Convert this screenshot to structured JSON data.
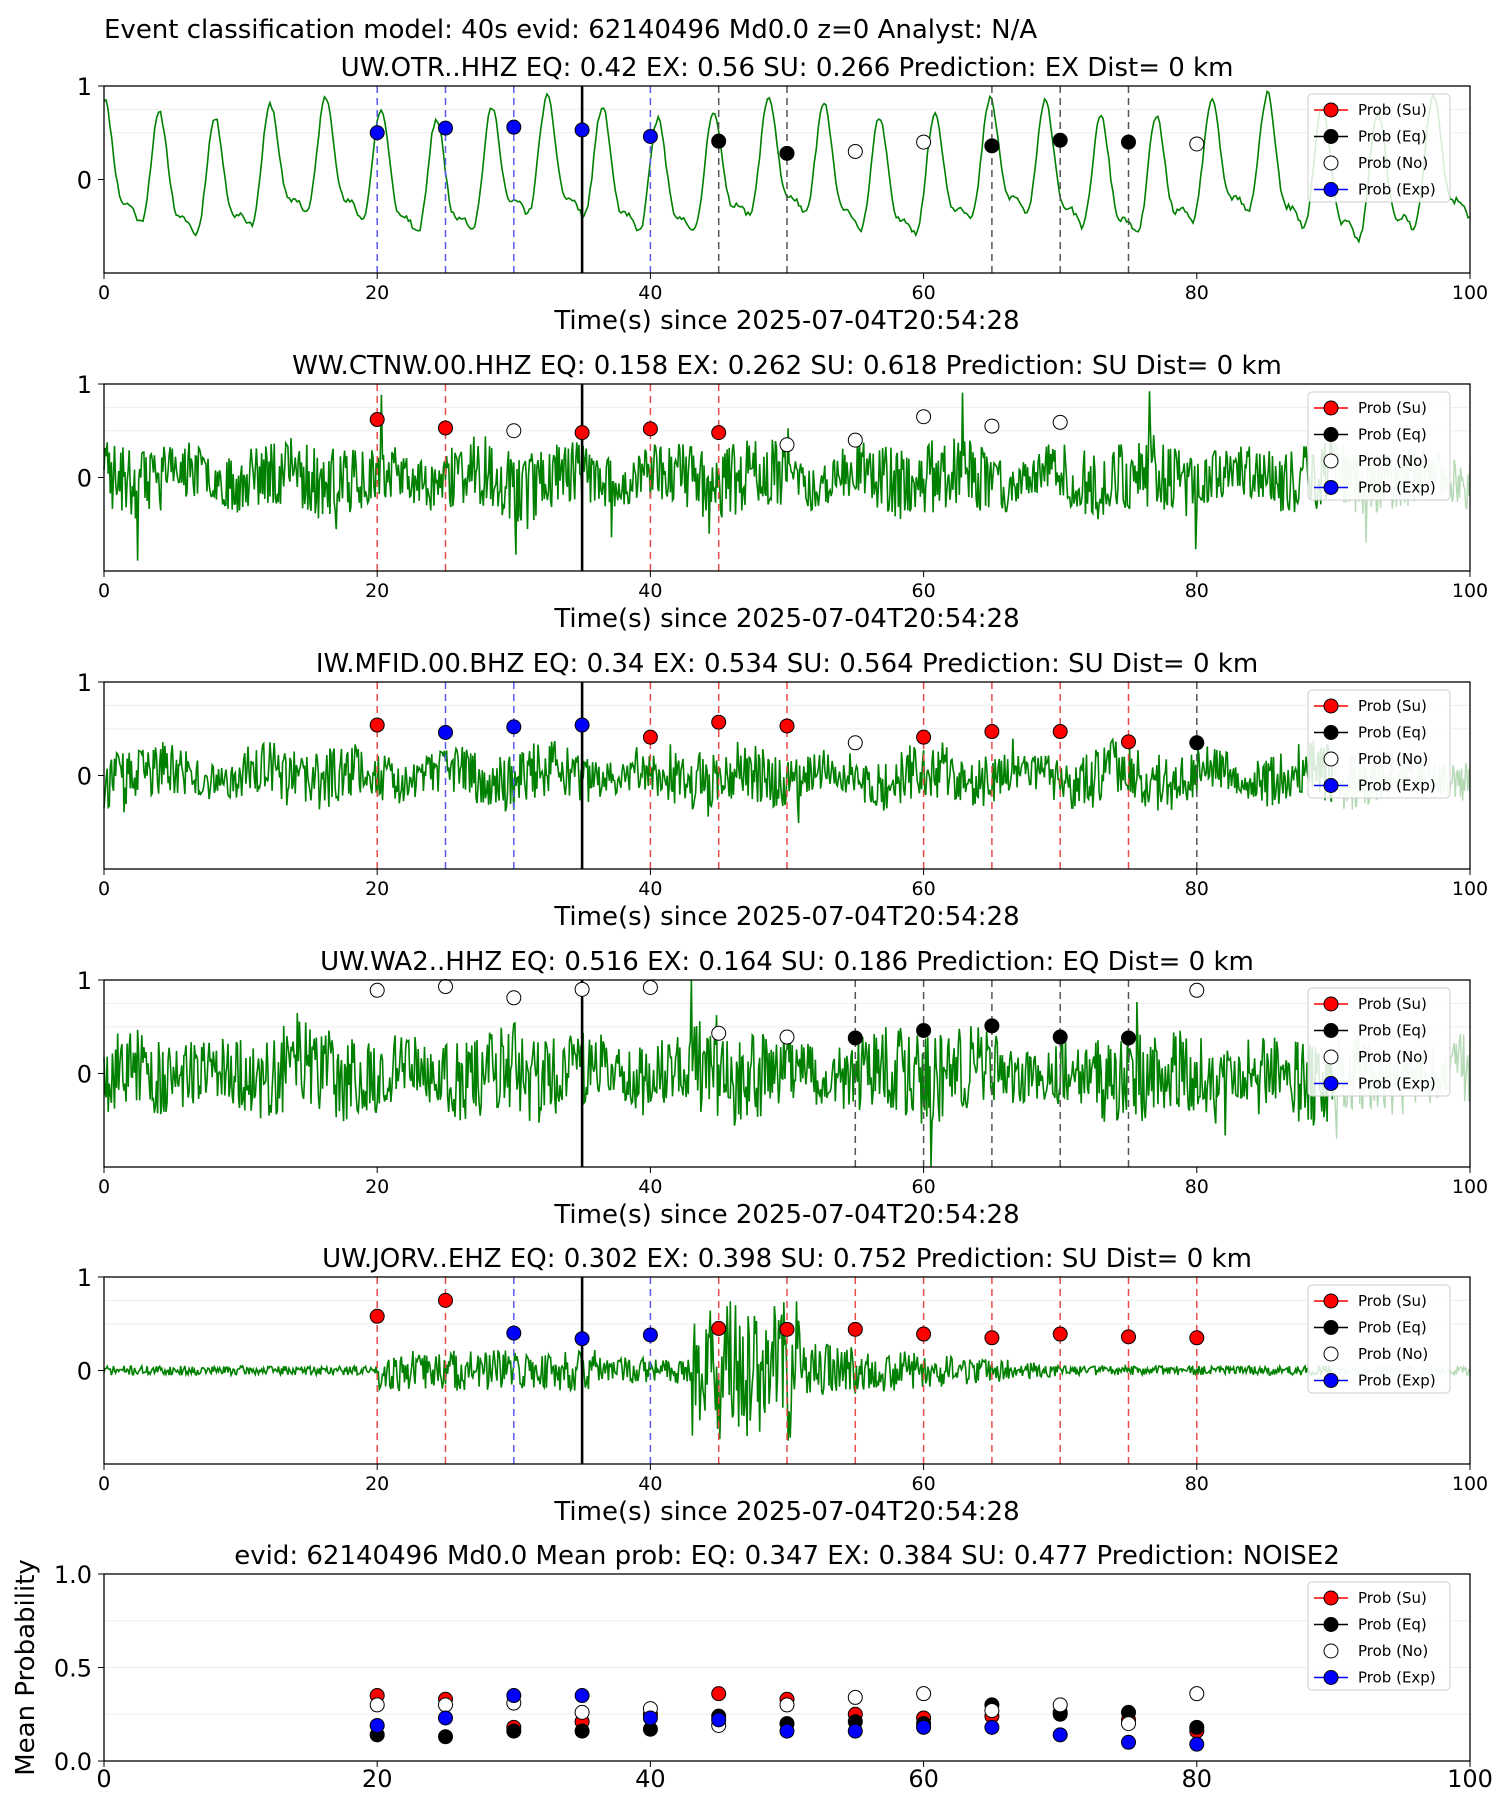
{
  "figure_title": "Event classification model: 40s evid: 62140496 Md0.0 z=0 Analyst: N/A",
  "legend": [
    "Prob (Su)",
    "Prob (Eq)",
    "Prob (No)",
    "Prob (Exp)"
  ],
  "colors": {
    "su": "#ff0000",
    "eq": "#000000",
    "no": "#ffffff",
    "exp": "#0000ff",
    "trace": "#008000",
    "trace_faded": "#b5d9b5"
  },
  "chart_data": [
    {
      "type": "scatter",
      "title": "UW.OTR..HHZ   EQ: 0.42   EX: 0.56   SU: 0.266   Prediction: EX    Dist= 0 km",
      "xlabel": "Time(s) since 2025-07-04T20:54:28",
      "xlim": [
        0,
        100
      ],
      "ylim": [
        -1,
        1
      ],
      "xticks": [
        "0",
        "20",
        "40",
        "60",
        "80",
        "100"
      ],
      "yticks": [
        "0",
        "1"
      ],
      "trace": {
        "style": "low-frequency",
        "seed": 11,
        "amp": 0.62
      },
      "arrival_time": 35,
      "points": [
        {
          "t": 20,
          "cls": "exp",
          "p": 0.5
        },
        {
          "t": 25,
          "cls": "exp",
          "p": 0.55
        },
        {
          "t": 30,
          "cls": "exp",
          "p": 0.56
        },
        {
          "t": 35,
          "cls": "exp",
          "p": 0.53
        },
        {
          "t": 40,
          "cls": "exp",
          "p": 0.46
        },
        {
          "t": 45,
          "cls": "eq",
          "p": 0.41
        },
        {
          "t": 50,
          "cls": "eq",
          "p": 0.28
        },
        {
          "t": 55,
          "cls": "no",
          "p": 0.3
        },
        {
          "t": 60,
          "cls": "no",
          "p": 0.4
        },
        {
          "t": 65,
          "cls": "eq",
          "p": 0.36
        },
        {
          "t": 70,
          "cls": "eq",
          "p": 0.42
        },
        {
          "t": 75,
          "cls": "eq",
          "p": 0.4
        },
        {
          "t": 80,
          "cls": "no",
          "p": 0.38
        }
      ]
    },
    {
      "type": "scatter",
      "title": "WW.CTNW.00.HHZ   EQ: 0.158   EX: 0.262   SU: 0.618   Prediction: SU    Dist= 0 km",
      "xlabel": "Time(s) since 2025-07-04T20:54:28",
      "xlim": [
        0,
        100
      ],
      "ylim": [
        -1,
        1
      ],
      "xticks": [
        "0",
        "20",
        "40",
        "60",
        "80",
        "100"
      ],
      "yticks": [
        "0",
        "1"
      ],
      "trace": {
        "style": "noise",
        "seed": 23,
        "amp": 0.32
      },
      "arrival_time": 35,
      "points": [
        {
          "t": 20,
          "cls": "su",
          "p": 0.62
        },
        {
          "t": 25,
          "cls": "su",
          "p": 0.53
        },
        {
          "t": 30,
          "cls": "no",
          "p": 0.5
        },
        {
          "t": 35,
          "cls": "su",
          "p": 0.48
        },
        {
          "t": 40,
          "cls": "su",
          "p": 0.52
        },
        {
          "t": 45,
          "cls": "su",
          "p": 0.48
        },
        {
          "t": 50,
          "cls": "no",
          "p": 0.35
        },
        {
          "t": 55,
          "cls": "no",
          "p": 0.4
        },
        {
          "t": 60,
          "cls": "no",
          "p": 0.65
        },
        {
          "t": 65,
          "cls": "no",
          "p": 0.55
        },
        {
          "t": 70,
          "cls": "no",
          "p": 0.59
        }
      ]
    },
    {
      "type": "scatter",
      "title": "IW.MFID.00.BHZ   EQ: 0.34   EX: 0.534   SU: 0.564   Prediction: SU    Dist= 0 km",
      "xlabel": "Time(s) since 2025-07-04T20:54:28",
      "xlim": [
        0,
        100
      ],
      "ylim": [
        -1,
        1
      ],
      "xticks": [
        "0",
        "20",
        "40",
        "60",
        "80",
        "100"
      ],
      "yticks": [
        "0",
        "1"
      ],
      "trace": {
        "style": "noise",
        "seed": 37,
        "amp": 0.26
      },
      "arrival_time": 35,
      "points": [
        {
          "t": 20,
          "cls": "su",
          "p": 0.54
        },
        {
          "t": 25,
          "cls": "exp",
          "p": 0.46
        },
        {
          "t": 30,
          "cls": "exp",
          "p": 0.52
        },
        {
          "t": 35,
          "cls": "exp",
          "p": 0.54
        },
        {
          "t": 40,
          "cls": "su",
          "p": 0.41
        },
        {
          "t": 45,
          "cls": "su",
          "p": 0.57
        },
        {
          "t": 50,
          "cls": "su",
          "p": 0.53
        },
        {
          "t": 55,
          "cls": "no",
          "p": 0.35
        },
        {
          "t": 60,
          "cls": "su",
          "p": 0.41
        },
        {
          "t": 65,
          "cls": "su",
          "p": 0.47
        },
        {
          "t": 70,
          "cls": "su",
          "p": 0.47
        },
        {
          "t": 75,
          "cls": "su",
          "p": 0.36
        },
        {
          "t": 80,
          "cls": "eq",
          "p": 0.35
        }
      ]
    },
    {
      "type": "scatter",
      "title": "UW.WA2..HHZ   EQ: 0.516   EX: 0.164   SU: 0.186   Prediction: EQ    Dist= 0 km",
      "xlabel": "Time(s) since 2025-07-04T20:54:28",
      "xlim": [
        0,
        100
      ],
      "ylim": [
        -1,
        1
      ],
      "xticks": [
        "0",
        "20",
        "40",
        "60",
        "80",
        "100"
      ],
      "yticks": [
        "0",
        "1"
      ],
      "trace": {
        "style": "noise",
        "seed": 53,
        "amp": 0.4
      },
      "arrival_time": 35,
      "points": [
        {
          "t": 20,
          "cls": "no",
          "p": 0.89
        },
        {
          "t": 25,
          "cls": "no",
          "p": 0.93
        },
        {
          "t": 30,
          "cls": "no",
          "p": 0.81
        },
        {
          "t": 35,
          "cls": "no",
          "p": 0.9
        },
        {
          "t": 40,
          "cls": "no",
          "p": 0.92
        },
        {
          "t": 45,
          "cls": "no",
          "p": 0.43
        },
        {
          "t": 50,
          "cls": "no",
          "p": 0.39
        },
        {
          "t": 55,
          "cls": "eq",
          "p": 0.38
        },
        {
          "t": 60,
          "cls": "eq",
          "p": 0.46
        },
        {
          "t": 65,
          "cls": "eq",
          "p": 0.51
        },
        {
          "t": 70,
          "cls": "eq",
          "p": 0.39
        },
        {
          "t": 75,
          "cls": "eq",
          "p": 0.38
        },
        {
          "t": 80,
          "cls": "no",
          "p": 0.89
        }
      ]
    },
    {
      "type": "scatter",
      "title": "UW.JORV..EHZ   EQ: 0.302   EX: 0.398   SU: 0.752   Prediction: SU    Dist= 0 km",
      "xlabel": "Time(s) since 2025-07-04T20:54:28",
      "xlim": [
        0,
        100
      ],
      "ylim": [
        -1,
        1
      ],
      "xticks": [
        "0",
        "20",
        "40",
        "60",
        "80",
        "100"
      ],
      "yticks": [
        "0",
        "1"
      ],
      "trace": {
        "style": "burst",
        "seed": 71,
        "amp": 0.3
      },
      "arrival_time": 35,
      "points": [
        {
          "t": 20,
          "cls": "su",
          "p": 0.58
        },
        {
          "t": 25,
          "cls": "su",
          "p": 0.75
        },
        {
          "t": 30,
          "cls": "exp",
          "p": 0.4
        },
        {
          "t": 35,
          "cls": "exp",
          "p": 0.34
        },
        {
          "t": 40,
          "cls": "exp",
          "p": 0.38
        },
        {
          "t": 45,
          "cls": "su",
          "p": 0.45
        },
        {
          "t": 50,
          "cls": "su",
          "p": 0.44
        },
        {
          "t": 55,
          "cls": "su",
          "p": 0.44
        },
        {
          "t": 60,
          "cls": "su",
          "p": 0.39
        },
        {
          "t": 65,
          "cls": "su",
          "p": 0.35
        },
        {
          "t": 70,
          "cls": "su",
          "p": 0.39
        },
        {
          "t": 75,
          "cls": "su",
          "p": 0.36
        },
        {
          "t": 80,
          "cls": "su",
          "p": 0.35
        }
      ]
    },
    {
      "type": "scatter",
      "title": "evid: 62140496  Md0.0   Mean prob:   EQ: 0.347   EX: 0.384   SU: 0.477   Prediction: NOISE2",
      "xlabel": "",
      "ylabel": "Mean Probability",
      "xlim": [
        0,
        100
      ],
      "ylim": [
        0,
        1
      ],
      "xticks": [
        "0",
        "20",
        "40",
        "60",
        "80",
        "100"
      ],
      "yticks": [
        "0.0",
        "0.5",
        "1.0"
      ],
      "t": [
        20,
        25,
        30,
        35,
        40,
        45,
        50,
        55,
        60,
        65,
        70,
        75,
        80
      ],
      "series": [
        {
          "cls": "su",
          "values": [
            0.35,
            0.33,
            0.18,
            0.21,
            0.25,
            0.36,
            0.33,
            0.25,
            0.23,
            0.24,
            0.26,
            0.22,
            0.16
          ]
        },
        {
          "cls": "eq",
          "values": [
            0.14,
            0.13,
            0.16,
            0.16,
            0.17,
            0.24,
            0.2,
            0.21,
            0.2,
            0.3,
            0.25,
            0.26,
            0.18
          ]
        },
        {
          "cls": "no",
          "values": [
            0.3,
            0.3,
            0.31,
            0.26,
            0.28,
            0.19,
            0.3,
            0.34,
            0.36,
            0.27,
            0.3,
            0.2,
            0.36
          ]
        },
        {
          "cls": "exp",
          "values": [
            0.19,
            0.23,
            0.35,
            0.35,
            0.23,
            0.22,
            0.16,
            0.16,
            0.18,
            0.18,
            0.14,
            0.1,
            0.09
          ]
        }
      ]
    }
  ]
}
